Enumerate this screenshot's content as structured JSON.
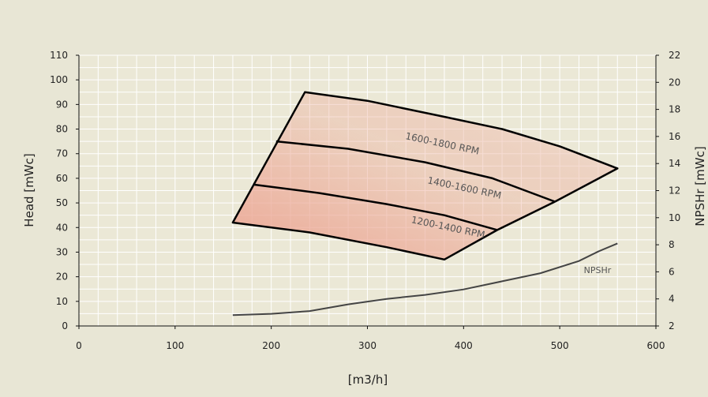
{
  "chart_data": {
    "type": "line",
    "xlabel": "[m3/h]",
    "ylabel": "Head [mWc]",
    "y2label": "NPSHr [mWc]",
    "xlim": [
      0,
      600
    ],
    "ylim": [
      0,
      110
    ],
    "y2lim": [
      2,
      22
    ],
    "xticks": [
      0,
      100,
      200,
      300,
      400,
      500,
      600
    ],
    "yticks": [
      0,
      10,
      20,
      30,
      40,
      50,
      60,
      70,
      80,
      90,
      100,
      110
    ],
    "y2ticks": [
      2,
      4,
      6,
      8,
      10,
      12,
      14,
      16,
      18,
      20,
      22
    ],
    "grid": true,
    "x_minor_step": 20,
    "y_minor_step": 5,
    "colors": {
      "background": "#e8e6d5",
      "plot_area": "#ebe8d6",
      "grid": "#ffffff",
      "curve": "#000000",
      "npsh_line": "#444444",
      "fill_low": "#eca896",
      "fill_high": "#f2f0e6"
    },
    "envelope": [
      [
        160,
        42
      ],
      [
        235,
        95
      ],
      [
        300,
        91.5
      ],
      [
        380,
        85
      ],
      [
        440,
        80
      ],
      [
        500,
        73
      ],
      [
        560,
        64
      ],
      [
        495,
        50.5
      ],
      [
        435,
        39
      ],
      [
        380,
        27
      ],
      [
        320,
        32
      ],
      [
        240,
        38
      ],
      [
        160,
        42
      ]
    ],
    "speed_curves": [
      {
        "name": "1200-1400 RPM",
        "points": [
          [
            181,
            57.5
          ],
          [
            250,
            54
          ],
          [
            320,
            49.5
          ],
          [
            380,
            45
          ],
          [
            435,
            39
          ]
        ]
      },
      {
        "name": "1400-1600 RPM",
        "points": [
          [
            205,
            75
          ],
          [
            280,
            72
          ],
          [
            360,
            66.5
          ],
          [
            430,
            60
          ],
          [
            495,
            50.5
          ]
        ]
      }
    ],
    "band_labels": [
      {
        "text": "1200-1400 RPM",
        "x": 345,
        "y": 42,
        "angle": 12
      },
      {
        "text": "1400-1600 RPM",
        "x": 362,
        "y": 58,
        "angle": 12
      },
      {
        "text": "1600-1800 RPM",
        "x": 339,
        "y": 76,
        "angle": 12
      }
    ],
    "npshr": {
      "name": "NPSHr",
      "label": "NPSHr",
      "label_position": [
        525,
        5.9
      ],
      "points": [
        [
          160,
          2.8
        ],
        [
          200,
          2.9
        ],
        [
          240,
          3.1
        ],
        [
          280,
          3.6
        ],
        [
          320,
          4.0
        ],
        [
          360,
          4.3
        ],
        [
          400,
          4.7
        ],
        [
          440,
          5.3
        ],
        [
          480,
          5.9
        ],
        [
          520,
          6.8
        ],
        [
          540,
          7.5
        ],
        [
          560,
          8.1
        ]
      ]
    }
  }
}
